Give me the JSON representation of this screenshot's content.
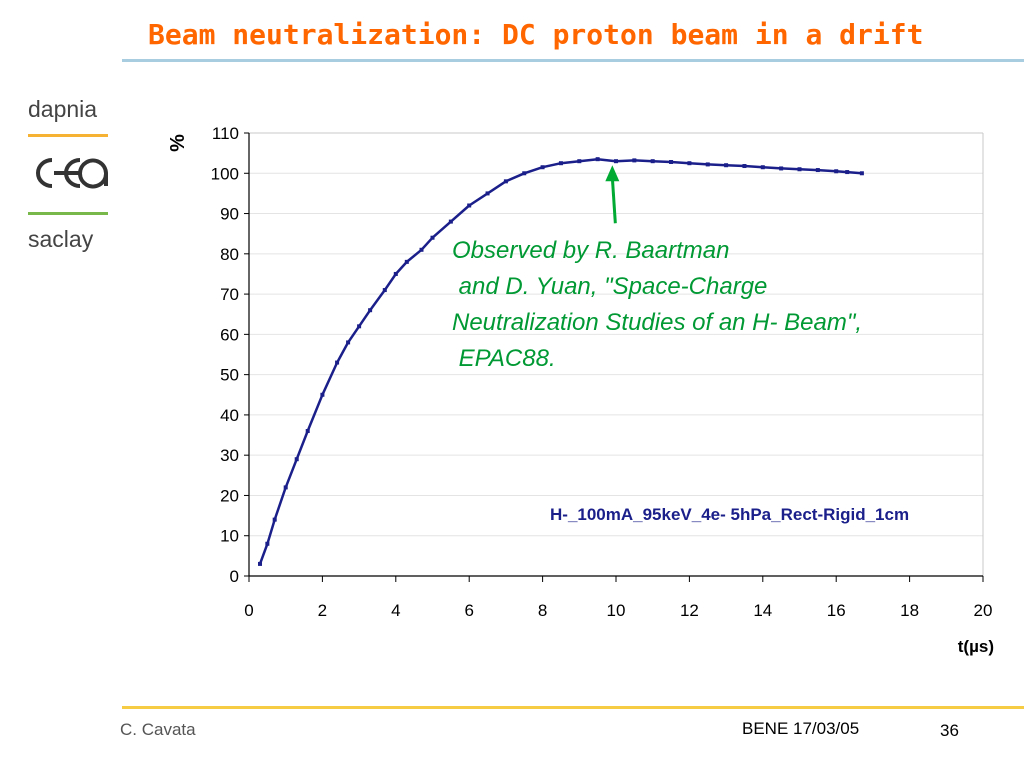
{
  "slide": {
    "title": "Beam neutralization: DC proton beam in a drift",
    "author": "C. Cavata",
    "event": "BENE 17/03/05",
    "page": "36"
  },
  "logo": {
    "top_text": "dapnia",
    "bottom_text": "saclay",
    "colors": {
      "top_bar": "#f5b233",
      "bottom_bar": "#78b84a"
    }
  },
  "annotation": {
    "lines": [
      "Observed by R. Baartman",
      " and D. Yuan, \"Space-Charge",
      "Neutralization Studies of an H- Beam\",",
      " EPAC88."
    ],
    "color": "#009933"
  },
  "chart_data": {
    "type": "line",
    "ylabel": "%",
    "xlabel": "t(µs)",
    "xlim": [
      0,
      20
    ],
    "ylim": [
      0,
      110
    ],
    "x_ticks": [
      0,
      2,
      4,
      6,
      8,
      10,
      12,
      14,
      16,
      18,
      20
    ],
    "y_ticks": [
      0,
      10,
      20,
      30,
      40,
      50,
      60,
      70,
      80,
      90,
      100,
      110
    ],
    "grid": "horizontal",
    "series_label": "H-_100mA_95keV_4e- 5hPa_Rect-Rigid_1cm",
    "series_color": "#1a1f8a",
    "arrow_color": "#00aa33",
    "arrow_points_to": {
      "x": 9.9,
      "y": 102
    },
    "series": [
      {
        "x": [
          0.3,
          0.5,
          0.7,
          1.0,
          1.3,
          1.6,
          2.0,
          2.4,
          2.7,
          3.0,
          3.3,
          3.7,
          4.0,
          4.3,
          4.7,
          5.0,
          5.5,
          6.0,
          6.5,
          7.0,
          7.5,
          8.0,
          8.5,
          9.0,
          9.5,
          10.0,
          10.5,
          11.0,
          11.5,
          12.0,
          12.5,
          13.0,
          13.5,
          14.0,
          14.5,
          15.0,
          15.5,
          16.0,
          16.3,
          16.7
        ],
        "y": [
          3,
          8,
          14,
          22,
          29,
          36,
          45,
          53,
          58,
          62,
          66,
          71,
          75,
          78,
          81,
          84,
          88,
          92,
          95,
          98,
          100,
          101.5,
          102.5,
          103,
          103.5,
          103,
          103.2,
          103,
          102.8,
          102.5,
          102.2,
          102,
          101.8,
          101.5,
          101.2,
          101,
          100.8,
          100.5,
          100.3,
          100
        ]
      }
    ]
  }
}
